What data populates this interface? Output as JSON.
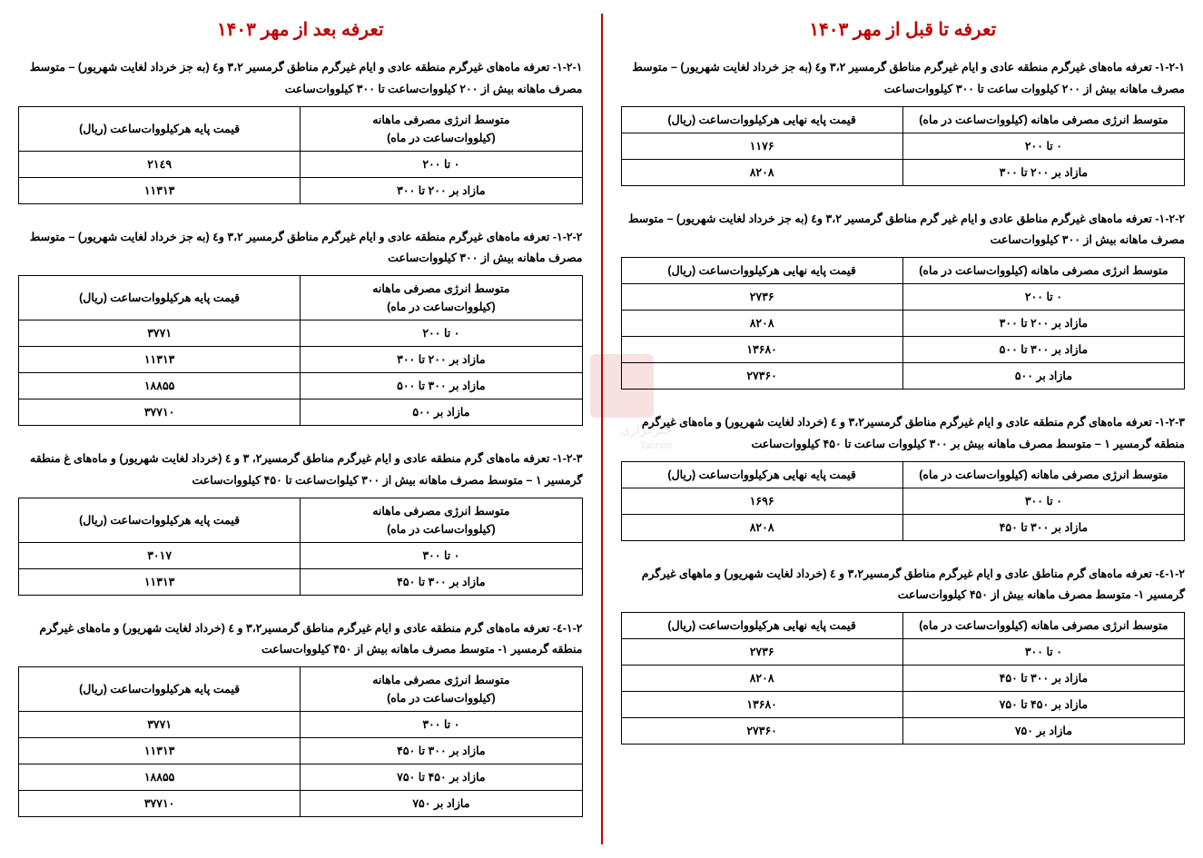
{
  "right_title": "تعرفه تا قبل از مهر ۱۴۰۳",
  "left_title": "تعرفه بعد از مهر ۱۴۰۳",
  "header_energy_long": "متوسط انرژی مصرفی ماهانه (کیلووات‌ساعت در ماه)",
  "header_price_long": "قیمت پایه نهایی هرکیلووات‌ساعت (ریال)",
  "header_energy_2l_a": "متوسط انرژی مصرفی ماهانه",
  "header_energy_2l_b": "(کیلووات‌ساعت در ماه)",
  "header_price_short": "قیمت پایه هرکیلووات‌ساعت (ریال)",
  "watermark_a": "خبرگزاری",
  "watermark_b": "Tasnim",
  "r1": {
    "cap": "۱-۲-۱- تعرفه ماه‌های غیرگرم منطقه عادی و ایام غیرگرم مناطق گرمسیر ۳،۲ و٤ (به جز خرداد لغایت شهریور) – متوسط مصرف ماهانه بیش از ۲۰۰ کیلووات ساعت تا ۳۰۰ کیلووات‌ساعت",
    "rows": [
      [
        "۰ تا ۲۰۰",
        "۱۱۷۶"
      ],
      [
        "مازاد بر ۲۰۰ تا ۳۰۰",
        "۸۲۰۸"
      ]
    ]
  },
  "r2": {
    "cap": "۱-۲-۲- تعرفه ماه‌های غیرگرم مناطق عادی و ایام غیر گرم مناطق گرمسیر ۳،۲ و٤ (به جز خرداد لغایت شهریور) – متوسط مصرف ماهانه بیش از ۳۰۰ کیلووات‌ساعت",
    "rows": [
      [
        "۰ تا ۲۰۰",
        "۲۷۳۶"
      ],
      [
        "مازاد بر ۲۰۰ تا ۳۰۰",
        "۸۲۰۸"
      ],
      [
        "مازاد بر ۳۰۰ تا ۵۰۰",
        "۱۳۶۸۰"
      ],
      [
        "مازاد بر ۵۰۰",
        "۲۷۳۶۰"
      ]
    ]
  },
  "r3": {
    "cap": "۱-۲-۳- تعرفه ماه‌های گرم منطقه عادی و ایام غیرگرم مناطق گرمسیر۳،۲ و ٤ (خرداد لغایت شهریور) و ماه‌های غیرگرم منطقه گرمسیر ۱ – متوسط مصرف ماهانه بیش بر ۳۰۰ کیلووات ساعت تا ۴۵۰ کیلووات‌ساعت",
    "rows": [
      [
        "۰ تا ۳۰۰",
        "۱۶۹۶"
      ],
      [
        "مازاد بر ۳۰۰ تا ۴۵۰",
        "۸۲۰۸"
      ]
    ]
  },
  "r4": {
    "cap": "۱-۲-٤- تعرفه ماه‌های گرم مناطق عادی و ایام غیرگرم مناطق گرمسیر۳،۲ و ٤ (خرداد لغایت شهریور) و ماههای غیرگرم گرمسیر ۱- متوسط مصرف ماهانه بیش از ۴۵۰ کیلووات‌ساعت",
    "rows": [
      [
        "۰ تا ۳۰۰",
        "۲۷۳۶"
      ],
      [
        "مازاد بر ۳۰۰ تا ۴۵۰",
        "۸۲۰۸"
      ],
      [
        "مازاد بر ۴۵۰ تا ۷۵۰",
        "۱۳۶۸۰"
      ],
      [
        "مازاد بر ۷۵۰",
        "۲۷۳۶۰"
      ]
    ]
  },
  "l1": {
    "cap": "۱-۲-۱- تعرفه ماه‌های غیرگرم منطقه عادی و ایام غیرگرم مناطق گرمسیر ۳،۲ و٤ (به جز خرداد لغایت شهریور) – متوسط مصرف ماهانه بیش از ۲۰۰ کیلووات‌ساعت تا ۳۰۰ کیلووات‌ساعت",
    "rows": [
      [
        "۰ تا ۲۰۰",
        "۲۱٤۹"
      ],
      [
        "مازاد بر ۲۰۰ تا ۳۰۰",
        "۱۱۳۱۳"
      ]
    ]
  },
  "l2": {
    "cap": "۱-۲-۲- تعرفه ماه‌های غیرگرم منطقه عادی و ایام غیرگرم مناطق گرمسیر ۳،۲ و٤ (به جز خرداد لغایت شهریور) – متوسط مصرف ماهانه بیش از ۳۰۰ کیلووات‌ساعت",
    "rows": [
      [
        "۰ تا ۲۰۰",
        "۳۷۷۱"
      ],
      [
        "مازاد بر ۲۰۰ تا ۳۰۰",
        "۱۱۳۱۳"
      ],
      [
        "مازاد بر ۳۰۰ تا ۵۰۰",
        "۱۸۸۵۵"
      ],
      [
        "مازاد بر ۵۰۰",
        "۳۷۷۱۰"
      ]
    ]
  },
  "l3": {
    "cap": "۱-۲-۳- تعرفه ماه‌های گرم منطقه عادی و ایام غیرگرم مناطق گرمسیر۲، ۳ و ٤ (خرداد لغایت شهریور) و ماه‌های غ منطقه گرمسیر ۱ – متوسط مصرف ماهانه بیش از ۳۰۰ کیلوات‌ساعت تا ۴۵۰ کیلووات‌ساعت",
    "rows": [
      [
        "۰ تا ۳۰۰",
        "۳۰۱۷"
      ],
      [
        "مازاد بر ۳۰۰ تا ۴۵۰",
        "۱۱۳۱۳"
      ]
    ]
  },
  "l4": {
    "cap": "۱-۲-٤- تعرفه ماه‌های گرم منطقه عادی و ایام غیرگرم مناطق گرمسیر۳،۲ و ٤ (خرداد لغایت شهریور) و ماه‌های غیرگرم  منطقه گرمسیر ۱- متوسط مصرف ماهانه بیش از ۴۵۰ کیلووات‌ساعت",
    "rows": [
      [
        "۰ تا ۳۰۰",
        "۳۷۷۱"
      ],
      [
        "مازاد بر ۳۰۰ تا ۴۵۰",
        "۱۱۳۱۳"
      ],
      [
        "مازاد بر ۴۵۰ تا ۷۵۰",
        "۱۸۸۵۵"
      ],
      [
        "مازاد بر ۷۵۰",
        "۳۷۷۱۰"
      ]
    ]
  }
}
